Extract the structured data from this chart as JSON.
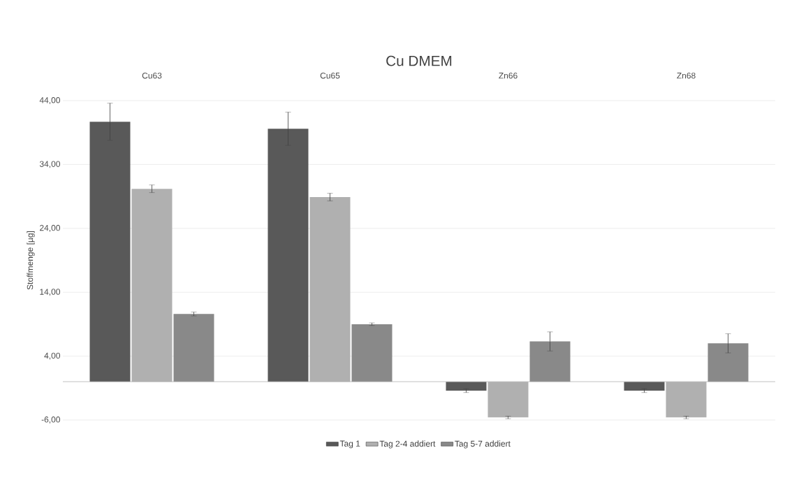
{
  "chart_data": {
    "type": "bar",
    "title": "Cu DMEM",
    "ylabel": "Stoffmenge [µg]",
    "categories": [
      "Cu63",
      "Cu65",
      "Zn66",
      "Zn68"
    ],
    "series": [
      {
        "name": "Tag 1",
        "color": "#595959",
        "values": [
          40.7,
          39.6,
          -1.4,
          -1.4
        ],
        "errors": [
          2.9,
          2.6,
          0.3,
          0.3
        ]
      },
      {
        "name": "Tag 2-4 addiert",
        "color": "#b0b0b0",
        "values": [
          30.2,
          28.9,
          -5.6,
          -5.6
        ],
        "errors": [
          0.6,
          0.6,
          0.2,
          0.2
        ]
      },
      {
        "name": "Tag 5-7 addiert",
        "color": "#898989",
        "values": [
          10.6,
          9.0,
          6.3,
          6.0
        ],
        "errors": [
          0.3,
          0.2,
          1.5,
          1.5
        ]
      }
    ],
    "ylim": [
      -6,
      44
    ],
    "yticks": [
      {
        "value": -6,
        "label": "-6,00"
      },
      {
        "value": 4,
        "label": "4,00"
      },
      {
        "value": 14,
        "label": "14,00"
      },
      {
        "value": 24,
        "label": "24,00"
      },
      {
        "value": 34,
        "label": "34,00"
      },
      {
        "value": 44,
        "label": "44,00"
      }
    ],
    "grid": "y",
    "legend": "bottom"
  }
}
